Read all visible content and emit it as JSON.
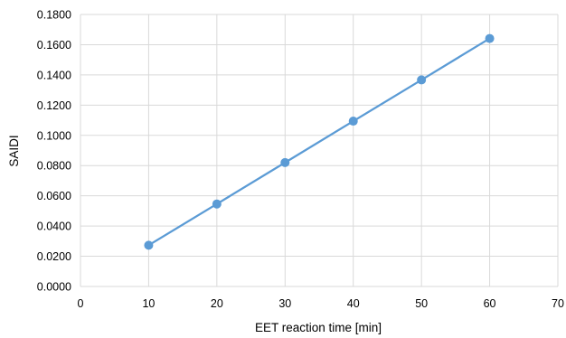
{
  "chart_data": {
    "type": "scatter",
    "title": "",
    "xlabel": "EET reaction time  [min]",
    "ylabel": "SAIDI",
    "xlim": [
      0,
      70
    ],
    "ylim": [
      0,
      0.18
    ],
    "x_ticks": [
      "0",
      "10",
      "20",
      "30",
      "40",
      "50",
      "60",
      "70"
    ],
    "y_ticks": [
      "0.0000",
      "0.0200",
      "0.0400",
      "0.0600",
      "0.0800",
      "0.1000",
      "0.1200",
      "0.1400",
      "0.1600",
      "0.1800"
    ],
    "grid": true,
    "legend": "none",
    "markers": true,
    "lines": true,
    "series": [
      {
        "color": "#5b9bd5",
        "x": [
          10,
          20,
          30,
          40,
          50,
          60
        ],
        "y": [
          0.0273,
          0.0546,
          0.082,
          0.1094,
          0.1367,
          0.1641
        ]
      }
    ]
  }
}
